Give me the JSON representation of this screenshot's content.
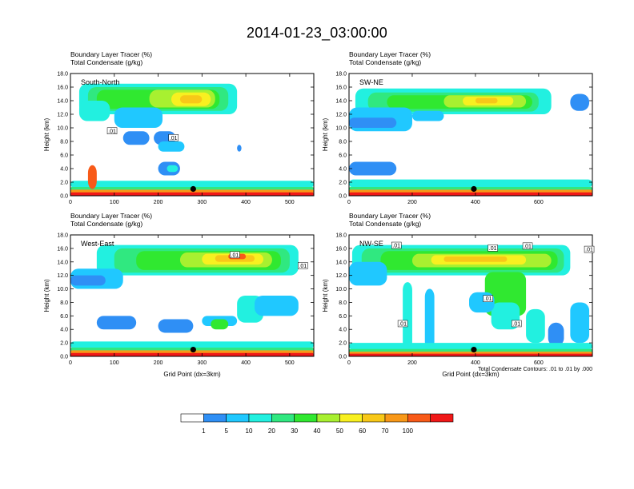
{
  "figure": {
    "title": "2014-01-23_03:00:00",
    "footnote": "Total Condensate Contours: .01 to .01 by .000"
  },
  "colorbar": {
    "colors": [
      "#ffffff",
      "#2f8ff5",
      "#20c8ff",
      "#22f0e0",
      "#30e880",
      "#30e830",
      "#a8f030",
      "#f8f020",
      "#f8c818",
      "#f89818",
      "#f85a18",
      "#f01818"
    ],
    "labels": [
      "1",
      "5",
      "10",
      "20",
      "30",
      "40",
      "50",
      "60",
      "70",
      "100"
    ]
  },
  "chart_data": [
    {
      "type": "heatmap",
      "title": "South-North",
      "header_lines": [
        "Boundary Layer Tracer   (%)",
        "Total Condensate   (g/kg)"
      ],
      "xlabel": "",
      "ylabel": "Height (km)",
      "xlim": [
        0,
        555
      ],
      "ylim": [
        0,
        18
      ],
      "xticks": [
        "0",
        "100",
        "200",
        "300",
        "400",
        "500"
      ],
      "yticks": [
        "0.0",
        "2.0",
        "4.0",
        "6.0",
        "8.0",
        "10.0",
        "12.0",
        "14.0",
        "16.0",
        "18.0"
      ],
      "marker_x": 280,
      "contour_labels": [
        {
          "text": ".01",
          "x": 95,
          "y": 9.5
        },
        {
          "text": ".01",
          "x": 235,
          "y": 8.5
        }
      ]
    },
    {
      "type": "heatmap",
      "title": "SW-NE",
      "header_lines": [
        "Boundary Layer Tracer   (%)",
        "Total Condensate   (g/kg)"
      ],
      "xlabel": "",
      "ylabel": "Height (km)",
      "xlim": [
        0,
        770
      ],
      "ylim": [
        0,
        18
      ],
      "xticks": [
        "0",
        "200",
        "400",
        "600"
      ],
      "yticks": [
        "0.0",
        "2.0",
        "4.0",
        "6.0",
        "8.0",
        "10.0",
        "12.0",
        "14.0",
        "16.0",
        "18.0"
      ],
      "marker_x": 395,
      "contour_labels": []
    },
    {
      "type": "heatmap",
      "title": "West-East",
      "header_lines": [
        "Boundary Layer Tracer   (%)",
        "Total Condensate   (g/kg)"
      ],
      "xlabel": "Grid Point (dx=3km)",
      "ylabel": "Height (km)",
      "xlim": [
        0,
        555
      ],
      "ylim": [
        0,
        18
      ],
      "xticks": [
        "0",
        "100",
        "200",
        "300",
        "400",
        "500"
      ],
      "yticks": [
        "0.0",
        "2.0",
        "4.0",
        "6.0",
        "8.0",
        "10.0",
        "12.0",
        "14.0",
        "16.0",
        "18.0"
      ],
      "marker_x": 280,
      "contour_labels": [
        {
          "text": ".01",
          "x": 375,
          "y": 15.0
        },
        {
          "text": ".01",
          "x": 530,
          "y": 13.4
        }
      ]
    },
    {
      "type": "heatmap",
      "title": "NW-SE",
      "header_lines": [
        "Boundary Layer Tracer   (%)",
        "Total Condensate   (g/kg)"
      ],
      "xlabel": "Grid Point (dx=3km)",
      "ylabel": "Height (km)",
      "xlim": [
        0,
        770
      ],
      "ylim": [
        0,
        18
      ],
      "xticks": [
        "0",
        "200",
        "400",
        "600"
      ],
      "yticks": [
        "0.0",
        "2.0",
        "4.0",
        "6.0",
        "8.0",
        "10.0",
        "12.0",
        "14.0",
        "16.0",
        "18.0"
      ],
      "marker_x": 395,
      "contour_labels": [
        {
          "text": ".01",
          "x": 150,
          "y": 16.4
        },
        {
          "text": ".01",
          "x": 440,
          "y": 8.5
        },
        {
          "text": ".01",
          "x": 170,
          "y": 4.8
        },
        {
          "text": ".01",
          "x": 455,
          "y": 16.0
        },
        {
          "text": ".01",
          "x": 565,
          "y": 16.3
        },
        {
          "text": ".01",
          "x": 530,
          "y": 4.8
        },
        {
          "text": ".01",
          "x": 760,
          "y": 15.8
        }
      ]
    }
  ]
}
